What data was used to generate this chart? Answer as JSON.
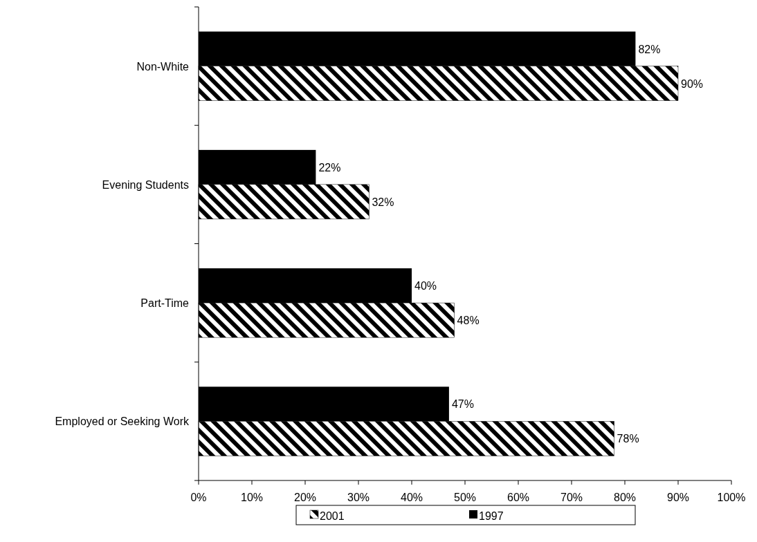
{
  "chart_data": {
    "type": "bar",
    "orientation": "horizontal",
    "categories": [
      "Non-White",
      "Evening Students",
      "Part-Time",
      "Employed or Seeking Work"
    ],
    "series": [
      {
        "name": "1997",
        "color": "#000000",
        "values": [
          82,
          22,
          40,
          47
        ],
        "value_labels": [
          "82%",
          "22%",
          "40%",
          "47%"
        ]
      },
      {
        "name": "2001",
        "color": "#000000",
        "values": [
          90,
          32,
          48,
          78
        ],
        "value_labels": [
          "90%",
          "32%",
          "48%",
          "78%"
        ]
      }
    ],
    "xlim": [
      0,
      100
    ],
    "xticks": [
      {
        "value": 0,
        "label": "0%"
      },
      {
        "value": 10,
        "label": "10%"
      },
      {
        "value": 20,
        "label": "20%"
      },
      {
        "value": 30,
        "label": "30%"
      },
      {
        "value": 40,
        "label": "40%"
      },
      {
        "value": 50,
        "label": "50%"
      },
      {
        "value": 60,
        "label": "60%"
      },
      {
        "value": 70,
        "label": "70%"
      },
      {
        "value": 80,
        "label": "80%"
      },
      {
        "value": 90,
        "label": "90%"
      },
      {
        "value": 100,
        "label": "100%"
      }
    ],
    "grid": false,
    "legend": "bottom"
  }
}
